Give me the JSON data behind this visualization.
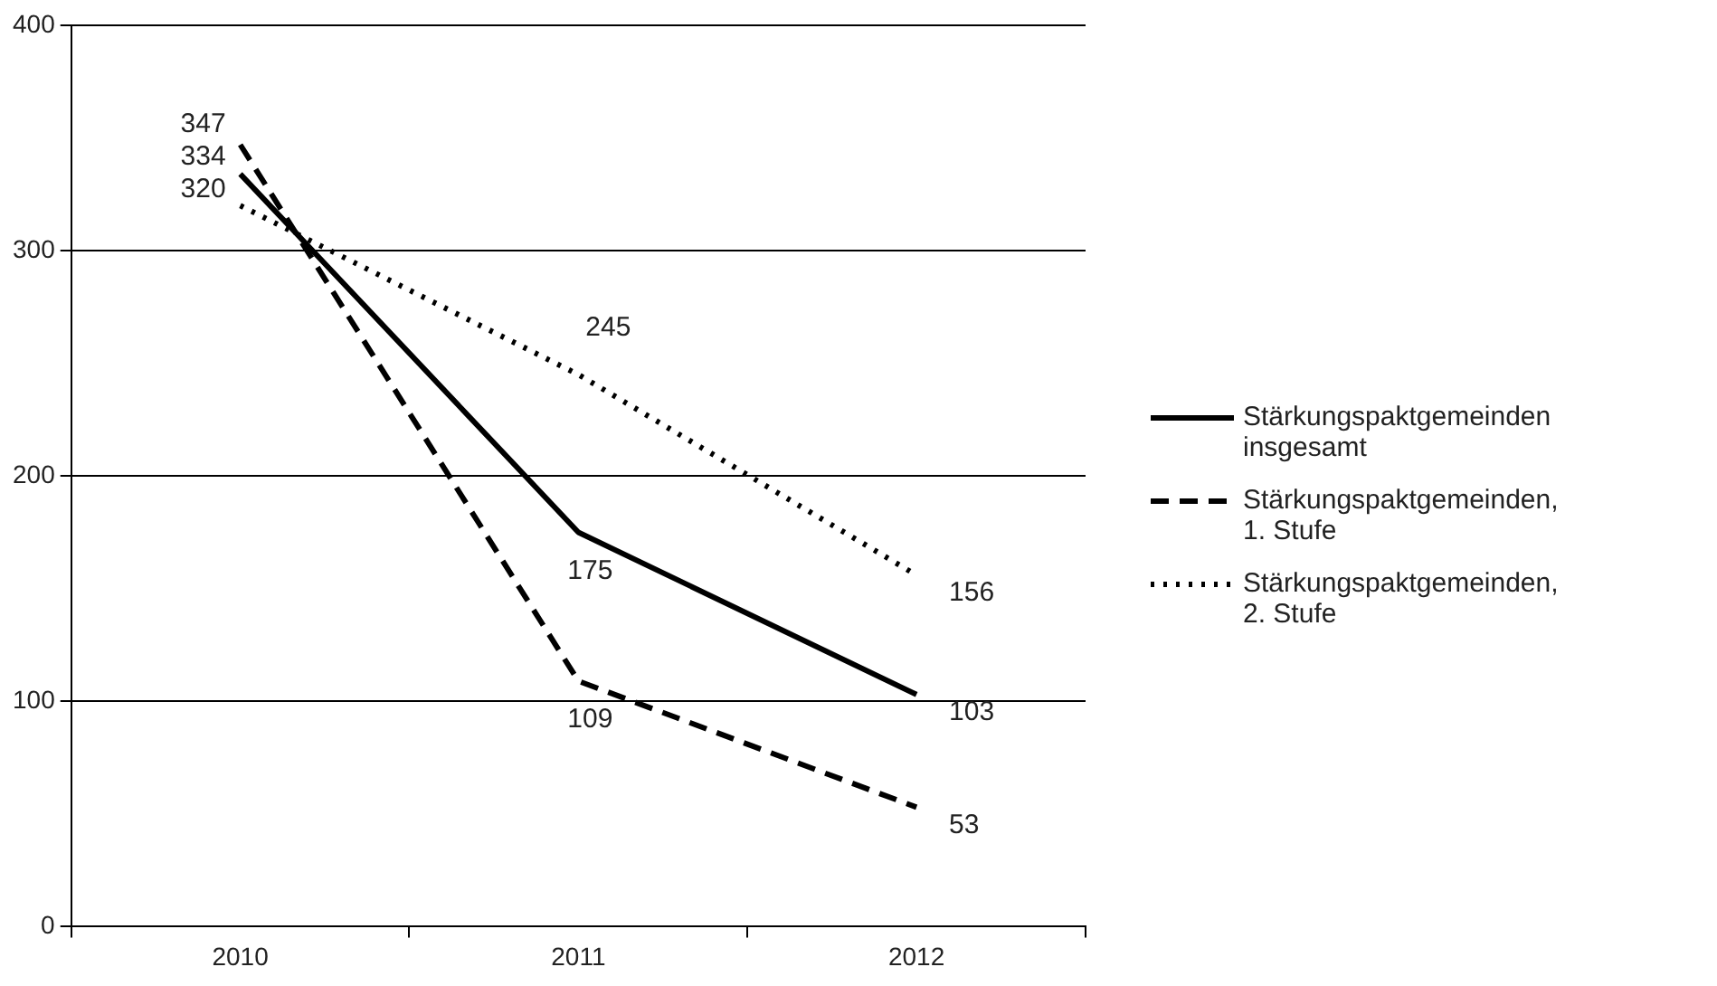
{
  "chart_data": {
    "type": "line",
    "categories": [
      "2010",
      "2011",
      "2012"
    ],
    "series": [
      {
        "name": "Stärkungspaktgemeinden insgesamt",
        "color": "#000000",
        "line_style": "solid",
        "values": [
          334,
          175,
          103
        ]
      },
      {
        "name": "Stärkungspaktgemeinden, 1. Stufe",
        "color": "#000000",
        "line_style": "dashed",
        "values": [
          347,
          109,
          53
        ]
      },
      {
        "name": "Stärkungspaktgemeinden, 2. Stufe",
        "color": "#000000",
        "line_style": "dotted",
        "values": [
          320,
          245,
          156
        ]
      }
    ],
    "ylim": [
      0,
      400
    ],
    "yticks": [
      0,
      100,
      200,
      300,
      400
    ],
    "grid": "y",
    "legend": "right",
    "marker": "none",
    "data_labels": true
  }
}
